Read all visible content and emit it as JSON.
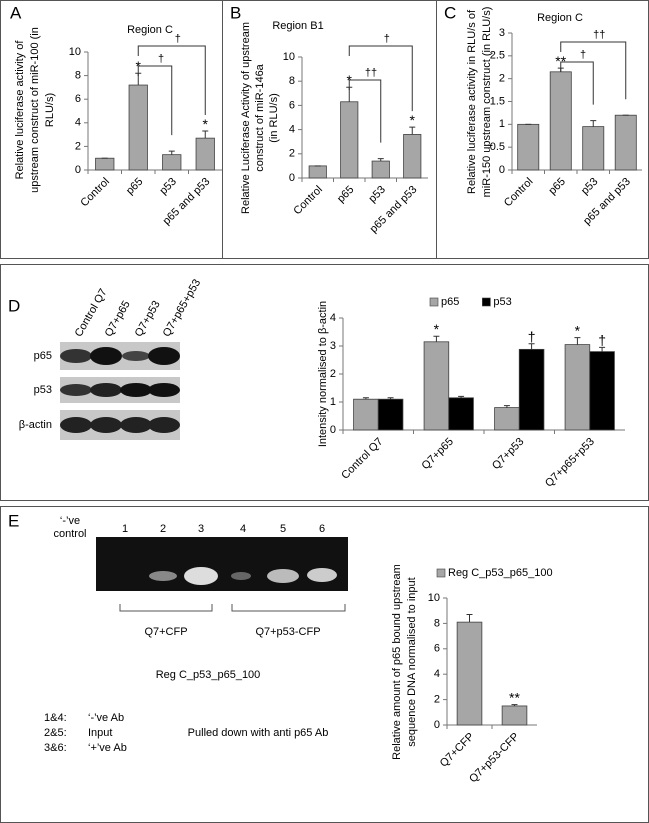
{
  "panels": {
    "labels": [
      "A",
      "B",
      "C",
      "D",
      "E"
    ]
  },
  "blot": {
    "lanes": [
      "Control Q7",
      "Q7+p65",
      "Q7+p53",
      "Q7+p65+p53"
    ],
    "rows": [
      "p65",
      "p53",
      "β-actin"
    ]
  },
  "gel": {
    "control_label": [
      "‘-’ve",
      "control"
    ],
    "lanes": [
      "1",
      "2",
      "3",
      "4",
      "5",
      "6"
    ],
    "groups": [
      "Q7+CFP",
      "Q7+p53-CFP"
    ],
    "title": "Reg C_p53_p65_100",
    "legend": [
      {
        "key": "1&4:",
        "text": "‘-’ve Ab"
      },
      {
        "key": "2&5:",
        "text": "Input"
      },
      {
        "key": "3&6:",
        "text": "‘+’ve Ab"
      }
    ],
    "note": "Pulled down with anti p65 Ab"
  },
  "chart_data": [
    {
      "type": "bar",
      "title": "Region C",
      "y_label": [
        "Relative luciferase activity of",
        "upstream construct of miR-100  (in",
        "RLU/s)"
      ],
      "categories": [
        "Control",
        "p65",
        "p53",
        "p65 and p53"
      ],
      "values": [
        1,
        7.2,
        1.3,
        2.7
      ],
      "errors": [
        0,
        1,
        0.3,
        0.6
      ],
      "sig_labels": [
        null,
        "*",
        null,
        "*"
      ],
      "color": "#a6a6a6",
      "brackets": [
        {
          "from": "p65",
          "to": "p53",
          "label": "†"
        },
        {
          "from": "p65",
          "to": "p65 and p53",
          "label": "†"
        }
      ],
      "ylim": [
        0,
        10
      ],
      "yticks": [
        0,
        2,
        4,
        6,
        8,
        10
      ]
    },
    {
      "type": "bar",
      "title": "Region B1",
      "y_label": [
        "Relative Luciferase Activity of upstream",
        "construct of miR-146a",
        "(in RLU/s)"
      ],
      "categories": [
        "Control",
        "p65",
        "p53",
        "p65 and p53"
      ],
      "values": [
        1,
        6.3,
        1.4,
        3.6
      ],
      "errors": [
        0,
        1.2,
        0.2,
        0.6
      ],
      "sig_labels": [
        null,
        "*",
        null,
        "*"
      ],
      "color": "#a6a6a6",
      "brackets": [
        {
          "from": "p65",
          "to": "p53",
          "label": "††"
        },
        {
          "from": "p65",
          "to": "p65 and p53",
          "label": "†"
        }
      ],
      "ylim": [
        0,
        10
      ],
      "yticks": [
        0,
        2,
        4,
        6,
        8,
        10
      ]
    },
    {
      "type": "bar",
      "title": "Region C",
      "y_label": [
        "Relative luciferase activity in RLU/s of",
        "miR-150 upstream  construct (in RLU/s)"
      ],
      "categories": [
        "Control",
        "p65",
        "p53",
        "p65 and p53"
      ],
      "values": [
        1,
        2.15,
        0.95,
        1.2
      ],
      "errors": [
        0,
        0.08,
        0.13,
        0
      ],
      "sig_labels": [
        null,
        "**",
        null,
        null
      ],
      "color": "#a6a6a6",
      "brackets": [
        {
          "from": "p65",
          "to": "p53",
          "label": "†"
        },
        {
          "from": "p65",
          "to": "p65 and p53",
          "label": "††"
        }
      ],
      "ylim": [
        0,
        3
      ],
      "yticks": [
        0,
        0.5,
        1,
        1.5,
        2,
        2.5,
        3
      ]
    },
    {
      "type": "bar",
      "y_label": [
        "Intensity normalised to β-actin"
      ],
      "categories": [
        "Control Q7",
        "Q7+p65",
        "Q7+p53",
        "Q7+p65+p53"
      ],
      "series": [
        {
          "name": "p65",
          "color": "#a6a6a6",
          "values": [
            1.1,
            3.15,
            0.8,
            3.05
          ],
          "errors": [
            0.05,
            0.2,
            0.07,
            0.25
          ],
          "sig_labels": [
            null,
            "*",
            null,
            "*"
          ]
        },
        {
          "name": "p53",
          "color": "#000000",
          "values": [
            1.1,
            1.15,
            2.88,
            2.8
          ],
          "errors": [
            0.05,
            0.05,
            0.2,
            0.15
          ],
          "sig_labels": [
            null,
            null,
            "†",
            "†"
          ]
        }
      ],
      "ylim": [
        0,
        4
      ],
      "yticks": [
        0,
        1,
        2,
        3,
        4
      ]
    },
    {
      "type": "bar",
      "y_label": [
        "Relative amount of p65 bound upstream",
        "sequence DNA normalised to input"
      ],
      "categories": [
        "Q7+CFP",
        "Q7+p53-CFP"
      ],
      "series": [
        {
          "name": "Reg C_p53_p65_100",
          "color": "#a6a6a6",
          "values": [
            8.1,
            1.5
          ],
          "errors": [
            0.6,
            0.1
          ],
          "sig_labels": [
            null,
            "**"
          ]
        }
      ],
      "ylim": [
        0,
        10
      ],
      "yticks": [
        0,
        2,
        4,
        6,
        8,
        10
      ]
    }
  ]
}
